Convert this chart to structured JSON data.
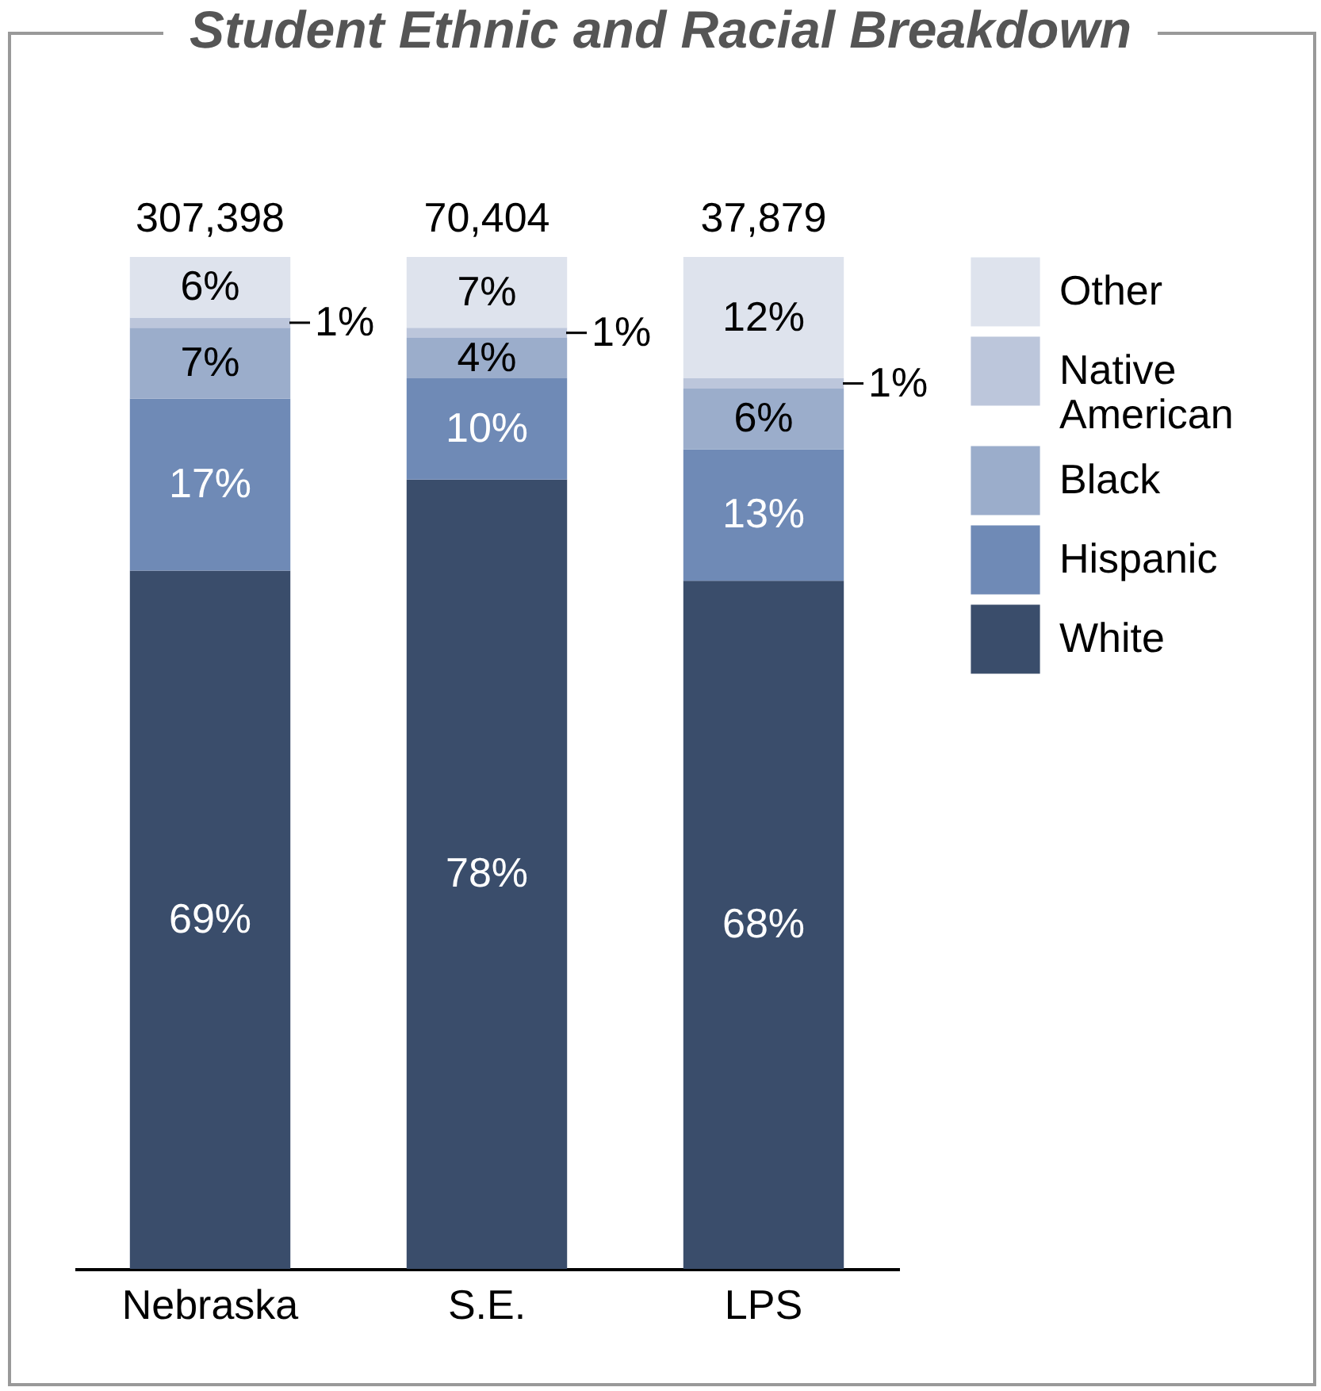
{
  "chart_data": {
    "type": "bar",
    "title": "Student Ethnic and Racial Breakdown",
    "stacked": true,
    "legend": "right",
    "categories": [
      "Nebraska",
      "S.E.",
      "LPS"
    ],
    "series": [
      {
        "name": "White",
        "color": "#3a4d6b",
        "values": [
          69,
          78,
          68
        ],
        "value_labels": [
          "69%",
          "78%",
          "68%"
        ]
      },
      {
        "name": "Hispanic",
        "color": "#6f8ab6",
        "values": [
          17,
          10,
          13
        ],
        "value_labels": [
          "17%",
          "10%",
          "13%"
        ]
      },
      {
        "name": "Black",
        "color": "#9badcb",
        "values": [
          7,
          4,
          6
        ],
        "value_labels": [
          "7%",
          "4%",
          "6%"
        ]
      },
      {
        "name": "Native American",
        "color": "#bcc6db",
        "values": [
          1,
          1,
          1
        ],
        "value_labels": [
          "1%",
          "1%",
          "1%"
        ]
      },
      {
        "name": "Other",
        "color": "#dee3ed",
        "values": [
          6,
          7,
          12
        ],
        "value_labels": [
          "6%",
          "7%",
          "12%"
        ]
      }
    ],
    "annotations": [
      {
        "text": "307,398",
        "x": "Nebraska",
        "y": 100
      },
      {
        "text": "70,404",
        "x": "S.E.",
        "y": 100
      },
      {
        "text": "37,879",
        "x": "LPS",
        "y": 100
      }
    ]
  }
}
